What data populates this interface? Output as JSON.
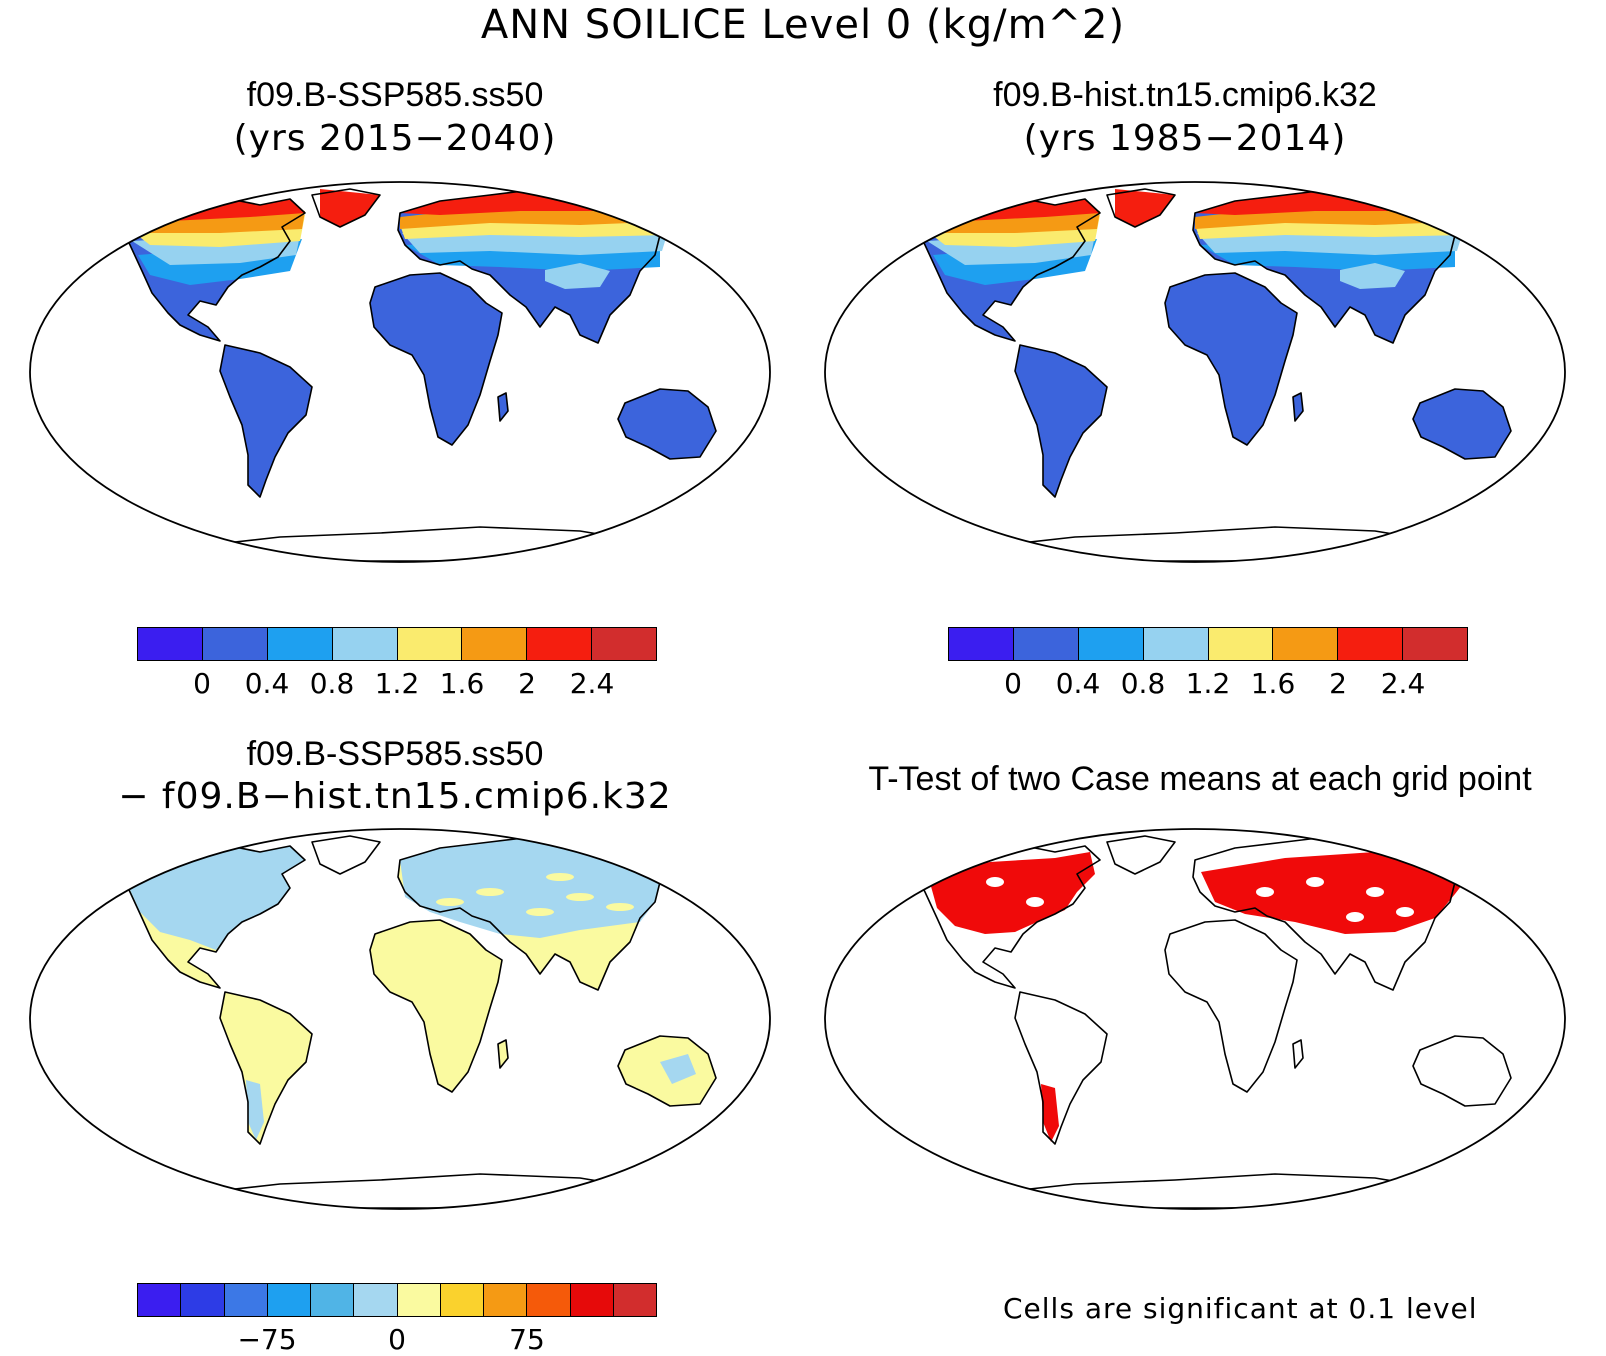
{
  "title": "ANN SOILICE Level 0 (kg/m^2)",
  "panels": [
    {
      "title": "f09.B-SSP585.ss50",
      "subtitle": "(yrs 2015−2040)"
    },
    {
      "title": "f09.B-hist.tn15.cmip6.k32",
      "subtitle": "(yrs 1985−2014)"
    },
    {
      "title": "f09.B-SSP585.ss50",
      "subtitle": "− f09.B−hist.tn15.cmip6.k32"
    },
    {
      "title": "T-Test of two Case means at each grid point",
      "subtitle": ""
    }
  ],
  "colorbar_abs": {
    "colors": [
      "#3b1ef0",
      "#3c64dc",
      "#1ea0f0",
      "#96d2f0",
      "#faeb6e",
      "#f59a14",
      "#f51e0f",
      "#d22d2d"
    ],
    "ticks": [
      "0",
      "0.4",
      "0.8",
      "1.2",
      "1.6",
      "2",
      "2.4"
    ]
  },
  "colorbar_diff": {
    "colors": [
      "#3b1ef0",
      "#2d3ce6",
      "#3c78e6",
      "#1ea0f0",
      "#50b4e6",
      "#a5d7f0",
      "#fafaa0",
      "#fad22d",
      "#f59a14",
      "#f55a0a",
      "#e60a0a",
      "#d22d2d"
    ],
    "ticks": [
      "−75",
      "0",
      "75"
    ]
  },
  "footnote": "Cells are significant at 0.1 level",
  "map_colors": {
    "land_base": "#3c64dc",
    "arctic_warm": "#f51e0f",
    "arctic_orange": "#f59a14",
    "arctic_yellow": "#faeb6e",
    "arctic_light": "#96d2f0",
    "arctic_blue": "#1ea0f0",
    "diff_blue": "#a5d7f0",
    "diff_yellow": "#fafaa0",
    "sig_red": "#f00a0a"
  }
}
